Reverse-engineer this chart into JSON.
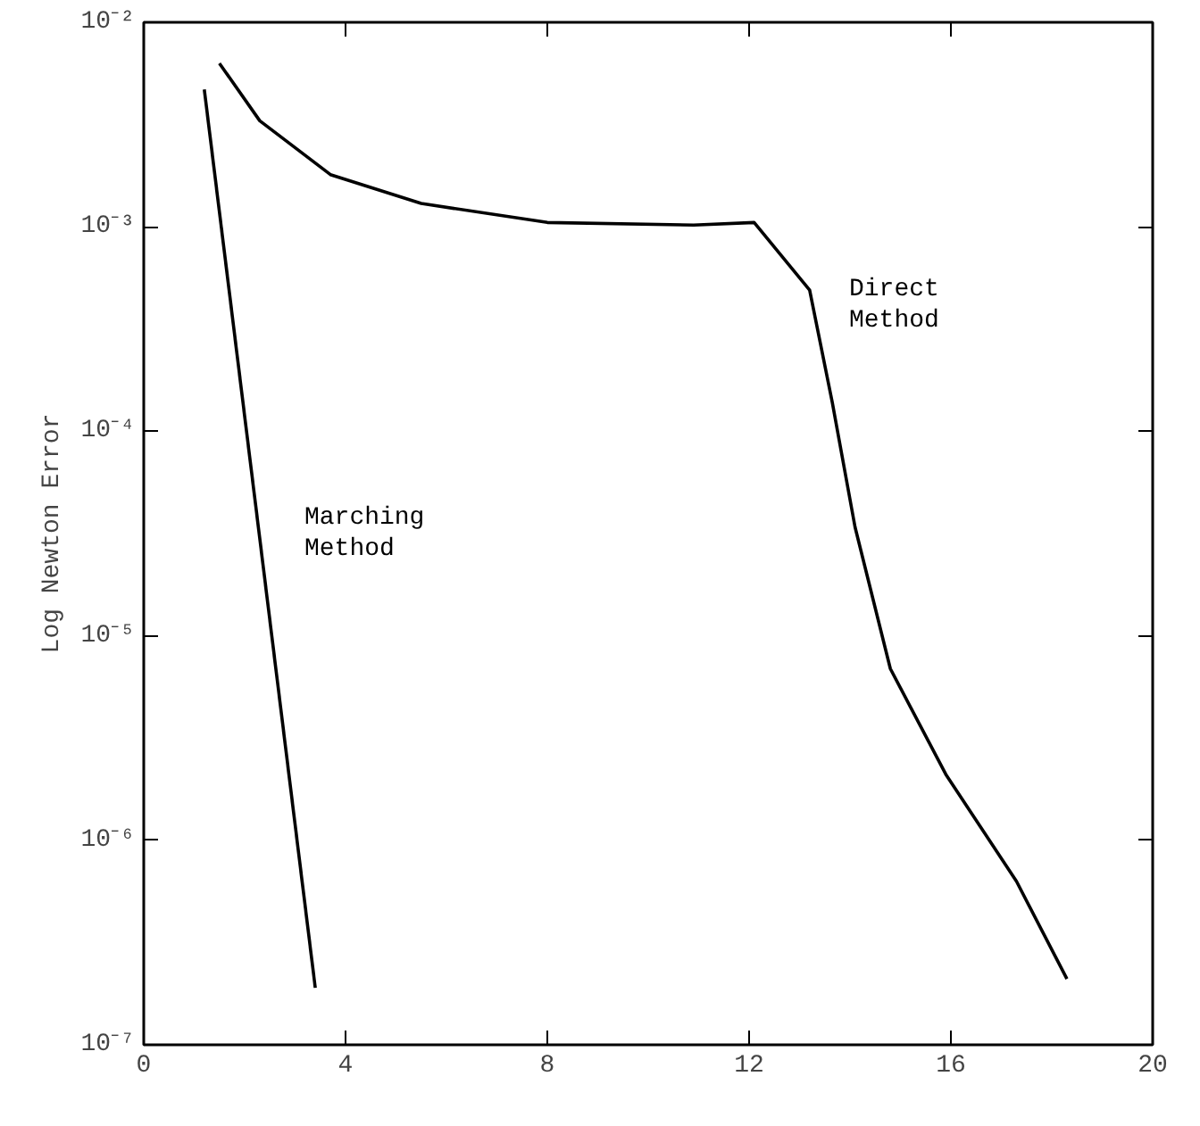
{
  "chart_data": {
    "type": "line",
    "ylabel": "Log Newton Error",
    "log": "y",
    "grid": false,
    "line_style": "solid",
    "marker": "none",
    "xlim": [
      0,
      20
    ],
    "xticks": [
      0,
      4,
      8,
      12,
      16,
      20
    ],
    "ylim": [
      1e-07,
      0.01
    ],
    "yticks": [
      {
        "value": 1e-07,
        "label": "10⁻⁷"
      },
      {
        "value": 1e-06,
        "label": "10⁻⁶"
      },
      {
        "value": 1e-05,
        "label": "10⁻⁵"
      },
      {
        "value": 0.0001,
        "label": "10⁻⁴"
      },
      {
        "value": 0.001,
        "label": "10⁻³"
      },
      {
        "value": 0.01,
        "label": "10⁻²"
      }
    ],
    "series": [
      {
        "color": "#000000",
        "x": [
          1.2,
          3.4
        ],
        "values": [
          0.0047,
          1.9e-07
        ]
      },
      {
        "color": "#000000",
        "x": [
          1.5,
          2.3,
          3.7,
          5.5,
          8.0,
          10.9,
          12.1,
          13.2,
          13.65,
          14.1,
          14.8,
          15.9,
          17.3,
          18.3
        ],
        "values": [
          0.0063,
          0.0033,
          0.0018,
          0.0013,
          0.00105,
          0.00102,
          0.00105,
          0.00049,
          0.000138,
          3.4e-05,
          6.9e-06,
          2.1e-06,
          6.3e-07,
          2.1e-07
        ]
      }
    ],
    "annotations": [
      "Marching\nMethod",
      "Direct\nMethod"
    ]
  }
}
